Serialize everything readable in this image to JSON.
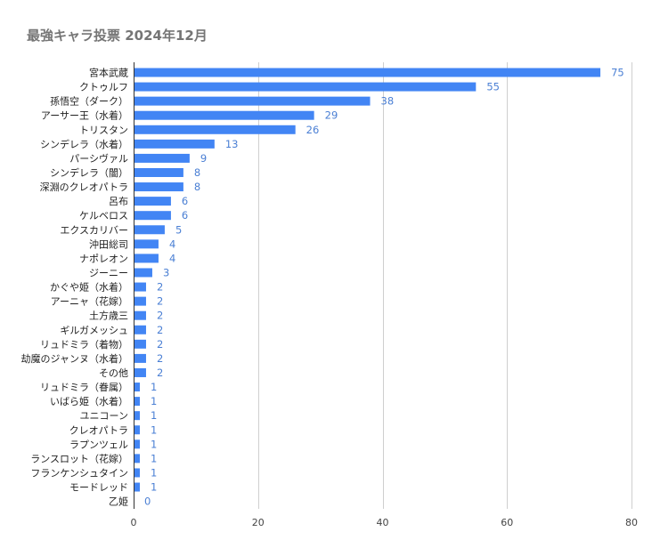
{
  "chart_data": {
    "type": "bar",
    "orientation": "horizontal",
    "title": "最強キャラ投票 2024年12月",
    "xlabel": "",
    "ylabel": "",
    "xlim": [
      0,
      80
    ],
    "xticks": [
      0,
      20,
      40,
      60,
      80
    ],
    "grid": "vertical",
    "legend": "none",
    "bar_color": "#4285f4",
    "label_color": "#4a7fd4",
    "categories": [
      "宮本武蔵",
      "クトゥルフ",
      "孫悟空（ダーク）",
      "アーサー王（水着）",
      "トリスタン",
      "シンデレラ（水着）",
      "パーシヴァル",
      "シンデレラ（闇）",
      "深淵のクレオパトラ",
      "呂布",
      "ケルベロス",
      "エクスカリバー",
      "沖田総司",
      "ナポレオン",
      "ジーニー",
      "かぐや姫（水着）",
      "アーニャ（花嫁）",
      "土方歳三",
      "ギルガメッシュ",
      "リュドミラ（着物）",
      "劫魔のジャンヌ（水着）",
      "その他",
      "リュドミラ（眷属）",
      "いばら姫（水着）",
      "ユニコーン",
      "クレオパトラ",
      "ラプンツェル",
      "ランスロット（花嫁）",
      "フランケンシュタイン",
      "モードレッド",
      "乙姫"
    ],
    "values": [
      75,
      55,
      38,
      29,
      26,
      13,
      9,
      8,
      8,
      6,
      6,
      5,
      4,
      4,
      3,
      2,
      2,
      2,
      2,
      2,
      2,
      2,
      1,
      1,
      1,
      1,
      1,
      1,
      1,
      1,
      0
    ]
  }
}
